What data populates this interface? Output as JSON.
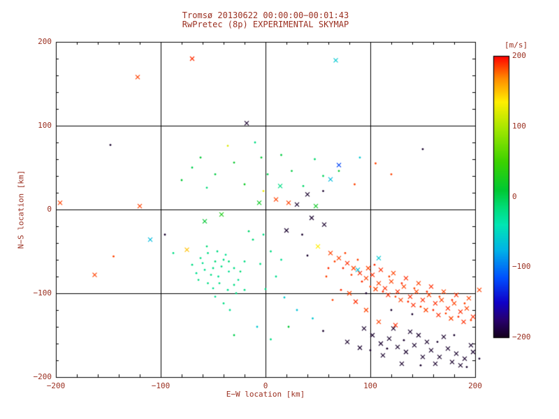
{
  "style": {
    "text_color": "#9a2f20",
    "frame_color": "#000000",
    "background": "#ffffff",
    "color_stops": [
      [
        -200,
        "#14001c"
      ],
      [
        -175,
        "#28006e"
      ],
      [
        -150,
        "#1000c8"
      ],
      [
        -115,
        "#0050ff"
      ],
      [
        -75,
        "#00b4e6"
      ],
      [
        -40,
        "#00e6b4"
      ],
      [
        -15,
        "#00dc78"
      ],
      [
        10,
        "#00c832"
      ],
      [
        50,
        "#3cd200"
      ],
      [
        95,
        "#a0e600"
      ],
      [
        135,
        "#ffee00"
      ],
      [
        168,
        "#ff8c00"
      ],
      [
        200,
        "#ff0000"
      ]
    ]
  },
  "chart_data": {
    "type": "scatter",
    "title_line1": "Tromsø 20130622 00:00:00−00:01:43",
    "title_line2": "RwPretec (8p) EXPERIMENTAL SKYMAP",
    "xlabel": "E−W location [km]",
    "ylabel": "N−S location [km]",
    "xlim": [
      -200,
      200
    ],
    "ylim": [
      -200,
      200
    ],
    "x_ticks": [
      -200,
      -100,
      0,
      100,
      200
    ],
    "y_ticks": [
      -200,
      -100,
      0,
      100,
      200
    ],
    "x_tick_labels": [
      "−200",
      "−100",
      "0",
      "100",
      "200"
    ],
    "y_tick_labels": [
      "−200",
      "−100",
      "0",
      "100",
      "200"
    ],
    "grid": true,
    "grid_lines": [
      -100,
      0,
      100
    ],
    "minor_tick_step": 20,
    "colorbar": {
      "label": "[m/s]",
      "vmin": -200,
      "vmax": 200,
      "ticks": [
        200,
        100,
        0,
        -100,
        -200
      ],
      "tick_labels": [
        "200",
        "100",
        "0",
        "−100",
        "−200"
      ]
    },
    "point_format": [
      "ew_km",
      "ns_km",
      "velocity_ms",
      "marker(x=cross,d=dot)"
    ],
    "points": [
      [
        -122,
        158,
        185,
        "x"
      ],
      [
        -70,
        180,
        190,
        "x"
      ],
      [
        67,
        178,
        -60,
        "x"
      ],
      [
        -18,
        103,
        -195,
        "x"
      ],
      [
        -148,
        77,
        -195,
        "d"
      ],
      [
        150,
        72,
        -195,
        "d"
      ],
      [
        -62,
        62,
        10,
        "d"
      ],
      [
        -48,
        42,
        5,
        "d"
      ],
      [
        -30,
        56,
        15,
        "d"
      ],
      [
        -56,
        26,
        -15,
        "d"
      ],
      [
        -20,
        30,
        20,
        "d"
      ],
      [
        -4,
        62,
        10,
        "d"
      ],
      [
        2,
        42,
        0,
        "d"
      ],
      [
        25,
        46,
        5,
        "d"
      ],
      [
        36,
        28,
        -10,
        "d"
      ],
      [
        55,
        40,
        -5,
        "d"
      ],
      [
        70,
        46,
        15,
        "d"
      ],
      [
        -36,
        76,
        120,
        "d"
      ],
      [
        -70,
        50,
        0,
        "d"
      ],
      [
        -80,
        35,
        10,
        "d"
      ],
      [
        -10,
        80,
        -20,
        "d"
      ],
      [
        15,
        65,
        5,
        "d"
      ],
      [
        -2,
        22,
        130,
        "d"
      ],
      [
        47,
        60,
        -10,
        "d"
      ],
      [
        85,
        30,
        185,
        "d"
      ],
      [
        120,
        42,
        185,
        "d"
      ],
      [
        70,
        53,
        -120,
        "x"
      ],
      [
        62,
        36,
        -70,
        "x"
      ],
      [
        10,
        12,
        185,
        "x"
      ],
      [
        22,
        8,
        185,
        "x"
      ],
      [
        40,
        18,
        -195,
        "x"
      ],
      [
        30,
        6,
        -195,
        "x"
      ],
      [
        -42,
        -6,
        30,
        "x"
      ],
      [
        -58,
        -14,
        10,
        "x"
      ],
      [
        -120,
        4,
        185,
        "x"
      ],
      [
        -196,
        8,
        185,
        "x"
      ],
      [
        48,
        4,
        20,
        "x"
      ],
      [
        55,
        22,
        -195,
        "d"
      ],
      [
        90,
        62,
        -60,
        "d"
      ],
      [
        105,
        55,
        185,
        "d"
      ],
      [
        -6,
        8,
        20,
        "x"
      ],
      [
        14,
        28,
        -20,
        "x"
      ],
      [
        56,
        -18,
        -195,
        "x"
      ],
      [
        44,
        -10,
        -195,
        "x"
      ],
      [
        -55,
        -52,
        -20,
        "d"
      ],
      [
        -60,
        -64,
        -25,
        "d"
      ],
      [
        -50,
        -70,
        -20,
        "d"
      ],
      [
        -45,
        -80,
        -25,
        "d"
      ],
      [
        -40,
        -60,
        -20,
        "d"
      ],
      [
        -35,
        -74,
        -25,
        "d"
      ],
      [
        -30,
        -90,
        -20,
        "d"
      ],
      [
        -50,
        -94,
        -25,
        "d"
      ],
      [
        -64,
        -84,
        -20,
        "d"
      ],
      [
        -56,
        -44,
        -15,
        "d"
      ],
      [
        -46,
        -50,
        -20,
        "d"
      ],
      [
        -38,
        -54,
        -25,
        "d"
      ],
      [
        -42,
        -68,
        -20,
        "d"
      ],
      [
        -48,
        -62,
        -15,
        "d"
      ],
      [
        -52,
        -78,
        -20,
        "d"
      ],
      [
        -58,
        -72,
        -25,
        "d"
      ],
      [
        -62,
        -58,
        -20,
        "d"
      ],
      [
        -35,
        -62,
        -15,
        "d"
      ],
      [
        -30,
        -70,
        -20,
        "d"
      ],
      [
        -26,
        -84,
        -25,
        "d"
      ],
      [
        -20,
        -62,
        -20,
        "d"
      ],
      [
        -12,
        -36,
        -15,
        "d"
      ],
      [
        -2,
        -30,
        -20,
        "d"
      ],
      [
        -16,
        -26,
        -10,
        "d"
      ],
      [
        -70,
        -66,
        -20,
        "d"
      ],
      [
        -66,
        -76,
        -25,
        "d"
      ],
      [
        -44,
        -88,
        -20,
        "d"
      ],
      [
        -36,
        -96,
        -25,
        "d"
      ],
      [
        -28,
        -100,
        -20,
        "d"
      ],
      [
        -24,
        -74,
        -15,
        "d"
      ],
      [
        -55,
        -88,
        -20,
        "d"
      ],
      [
        -48,
        -104,
        -25,
        "d"
      ],
      [
        -40,
        -112,
        -20,
        "d"
      ],
      [
        -34,
        -120,
        -25,
        "d"
      ],
      [
        -20,
        -96,
        -20,
        "d"
      ],
      [
        -110,
        -36,
        -70,
        "x"
      ],
      [
        -75,
        -48,
        150,
        "x"
      ],
      [
        -163,
        -78,
        185,
        "x"
      ],
      [
        -145,
        -56,
        185,
        "d"
      ],
      [
        -96,
        -30,
        -195,
        "d"
      ],
      [
        -88,
        -52,
        -20,
        "d"
      ],
      [
        5,
        -50,
        -20,
        "d"
      ],
      [
        15,
        -60,
        -25,
        "d"
      ],
      [
        50,
        -44,
        135,
        "x"
      ],
      [
        35,
        -30,
        -195,
        "d"
      ],
      [
        20,
        -25,
        -195,
        "x"
      ],
      [
        40,
        -55,
        -195,
        "d"
      ],
      [
        -5,
        -65,
        -20,
        "d"
      ],
      [
        10,
        -80,
        -25,
        "d"
      ],
      [
        0,
        -95,
        -20,
        "d"
      ],
      [
        18,
        -105,
        -60,
        "d"
      ],
      [
        30,
        -120,
        -65,
        "d"
      ],
      [
        -8,
        -140,
        -60,
        "d"
      ],
      [
        5,
        -155,
        -20,
        "d"
      ],
      [
        -30,
        -150,
        0,
        "d"
      ],
      [
        22,
        -140,
        10,
        "d"
      ],
      [
        45,
        -130,
        -60,
        "d"
      ],
      [
        55,
        -145,
        -195,
        "d"
      ],
      [
        62,
        -52,
        185,
        "x"
      ],
      [
        70,
        -58,
        185,
        "x"
      ],
      [
        78,
        -64,
        190,
        "x"
      ],
      [
        84,
        -70,
        185,
        "x"
      ],
      [
        90,
        -76,
        190,
        "x"
      ],
      [
        96,
        -82,
        185,
        "x"
      ],
      [
        102,
        -78,
        190,
        "x"
      ],
      [
        108,
        -88,
        185,
        "x"
      ],
      [
        114,
        -94,
        190,
        "x"
      ],
      [
        120,
        -86,
        185,
        "x"
      ],
      [
        126,
        -98,
        190,
        "x"
      ],
      [
        132,
        -92,
        185,
        "x"
      ],
      [
        138,
        -104,
        190,
        "x"
      ],
      [
        144,
        -98,
        185,
        "x"
      ],
      [
        150,
        -108,
        190,
        "x"
      ],
      [
        156,
        -102,
        185,
        "x"
      ],
      [
        162,
        -112,
        190,
        "x"
      ],
      [
        168,
        -108,
        185,
        "x"
      ],
      [
        174,
        -118,
        190,
        "x"
      ],
      [
        180,
        -112,
        185,
        "x"
      ],
      [
        186,
        -122,
        190,
        "x"
      ],
      [
        192,
        -118,
        185,
        "x"
      ],
      [
        198,
        -128,
        190,
        "x"
      ],
      [
        204,
        -96,
        185,
        "x"
      ],
      [
        98,
        -70,
        185,
        "x"
      ],
      [
        110,
        -72,
        190,
        "x"
      ],
      [
        122,
        -76,
        185,
        "x"
      ],
      [
        134,
        -82,
        190,
        "x"
      ],
      [
        146,
        -88,
        185,
        "x"
      ],
      [
        158,
        -92,
        190,
        "x"
      ],
      [
        170,
        -98,
        185,
        "x"
      ],
      [
        182,
        -102,
        190,
        "x"
      ],
      [
        194,
        -106,
        185,
        "x"
      ],
      [
        105,
        -95,
        185,
        "x"
      ],
      [
        117,
        -102,
        190,
        "x"
      ],
      [
        129,
        -108,
        185,
        "x"
      ],
      [
        141,
        -114,
        190,
        "x"
      ],
      [
        153,
        -120,
        185,
        "x"
      ],
      [
        165,
        -126,
        190,
        "x"
      ],
      [
        177,
        -130,
        185,
        "x"
      ],
      [
        189,
        -134,
        190,
        "x"
      ],
      [
        66,
        -62,
        185,
        "d"
      ],
      [
        74,
        -70,
        190,
        "d"
      ],
      [
        82,
        -78,
        185,
        "d"
      ],
      [
        92,
        -86,
        190,
        "d"
      ],
      [
        100,
        -92,
        185,
        "d"
      ],
      [
        112,
        -98,
        190,
        "d"
      ],
      [
        124,
        -104,
        185,
        "d"
      ],
      [
        136,
        -110,
        190,
        "d"
      ],
      [
        148,
        -116,
        185,
        "d"
      ],
      [
        160,
        -120,
        190,
        "d"
      ],
      [
        172,
        -124,
        185,
        "d"
      ],
      [
        184,
        -128,
        190,
        "d"
      ],
      [
        196,
        -132,
        185,
        "d"
      ],
      [
        88,
        -60,
        185,
        "d"
      ],
      [
        104,
        -66,
        190,
        "d"
      ],
      [
        118,
        -80,
        185,
        "d"
      ],
      [
        130,
        -88,
        190,
        "d"
      ],
      [
        142,
        -94,
        185,
        "d"
      ],
      [
        154,
        -98,
        190,
        "d"
      ],
      [
        166,
        -104,
        185,
        "d"
      ],
      [
        178,
        -108,
        190,
        "d"
      ],
      [
        190,
        -112,
        185,
        "d"
      ],
      [
        76,
        -52,
        185,
        "d"
      ],
      [
        60,
        -70,
        190,
        "d"
      ],
      [
        58,
        -80,
        185,
        "d"
      ],
      [
        88,
        -72,
        -65,
        "x"
      ],
      [
        108,
        -58,
        -60,
        "x"
      ],
      [
        96,
        -100,
        -195,
        "d"
      ],
      [
        120,
        -120,
        -195,
        "d"
      ],
      [
        140,
        -125,
        -195,
        "d"
      ],
      [
        108,
        -134,
        185,
        "x"
      ],
      [
        124,
        -138,
        190,
        "x"
      ],
      [
        96,
        -120,
        185,
        "x"
      ],
      [
        86,
        -110,
        190,
        "x"
      ],
      [
        80,
        -100,
        185,
        "x"
      ],
      [
        72,
        -96,
        190,
        "d"
      ],
      [
        64,
        -108,
        185,
        "d"
      ],
      [
        94,
        -142,
        -195,
        "x"
      ],
      [
        102,
        -150,
        -195,
        "x"
      ],
      [
        110,
        -160,
        -195,
        "x"
      ],
      [
        118,
        -154,
        -195,
        "x"
      ],
      [
        126,
        -164,
        -195,
        "x"
      ],
      [
        134,
        -170,
        -195,
        "x"
      ],
      [
        142,
        -162,
        -195,
        "x"
      ],
      [
        150,
        -176,
        -195,
        "x"
      ],
      [
        158,
        -168,
        -195,
        "x"
      ],
      [
        166,
        -176,
        -195,
        "x"
      ],
      [
        174,
        -166,
        -195,
        "x"
      ],
      [
        182,
        -172,
        -195,
        "x"
      ],
      [
        190,
        -178,
        -195,
        "x"
      ],
      [
        198,
        -170,
        -195,
        "x"
      ],
      [
        146,
        -150,
        -195,
        "x"
      ],
      [
        130,
        -184,
        -195,
        "x"
      ],
      [
        112,
        -174,
        -195,
        "x"
      ],
      [
        170,
        -152,
        -195,
        "x"
      ],
      [
        186,
        -186,
        -195,
        "x"
      ],
      [
        196,
        -162,
        -195,
        "x"
      ],
      [
        154,
        -158,
        -195,
        "x"
      ],
      [
        162,
        -184,
        -195,
        "x"
      ],
      [
        138,
        -146,
        -195,
        "x"
      ],
      [
        122,
        -142,
        -195,
        "x"
      ],
      [
        178,
        -182,
        -195,
        "x"
      ],
      [
        90,
        -165,
        -195,
        "x"
      ],
      [
        78,
        -158,
        -195,
        "x"
      ],
      [
        100,
        -168,
        -195,
        "d"
      ],
      [
        116,
        -166,
        -195,
        "d"
      ],
      [
        132,
        -156,
        -195,
        "d"
      ],
      [
        148,
        -186,
        -195,
        "d"
      ],
      [
        164,
        -158,
        -195,
        "d"
      ],
      [
        180,
        -150,
        -195,
        "d"
      ],
      [
        192,
        -188,
        -195,
        "d"
      ],
      [
        204,
        -178,
        -195,
        "d"
      ]
    ]
  }
}
